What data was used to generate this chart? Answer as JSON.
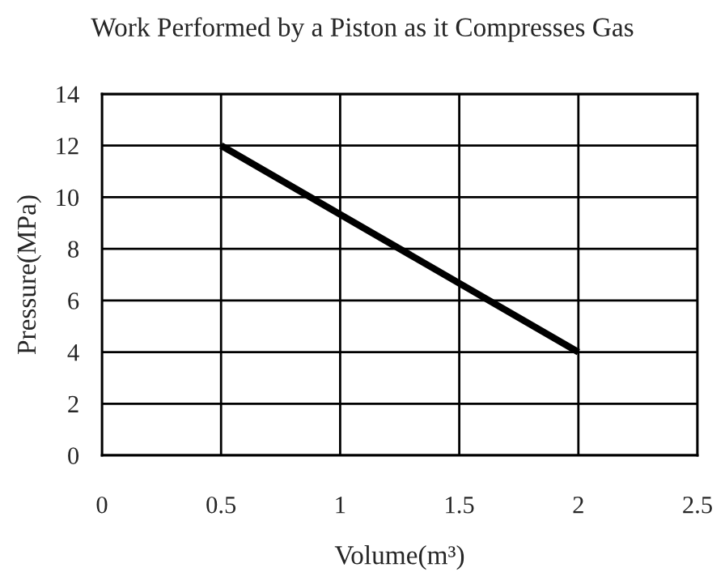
{
  "chart_data": {
    "type": "line",
    "title": "Work Performed by a Piston as it Compresses Gas",
    "xlabel": "Volume(m³)",
    "ylabel": "Pressure(MPa)",
    "x": [
      0.5,
      2
    ],
    "series": [
      {
        "color": "#000000",
        "values": [
          12,
          4
        ]
      }
    ],
    "xlim": [
      0,
      2.5
    ],
    "ylim": [
      0,
      14
    ],
    "xticks": [
      0,
      0.5,
      1,
      1.5,
      2,
      2.5
    ],
    "yticks": [
      0,
      2,
      4,
      6,
      8,
      10,
      12,
      14
    ],
    "grid": true,
    "marker": "none",
    "line_style": "solid"
  }
}
